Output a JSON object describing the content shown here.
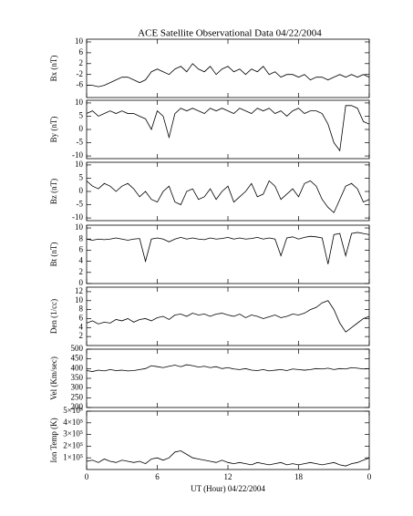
{
  "chart_data": [
    {
      "type": "line",
      "title": "ACE Satellite Observational Data   04/22/2004",
      "ylabel": "Bx (nT)",
      "ylim": [
        -10.5,
        11
      ],
      "yticks": [
        -6,
        -2,
        2,
        6,
        10
      ],
      "x": [
        0,
        0.5,
        1,
        1.5,
        2,
        2.5,
        3,
        3.5,
        4,
        4.5,
        5,
        5.5,
        6,
        6.5,
        7,
        7.5,
        8,
        8.5,
        9,
        9.5,
        10,
        10.5,
        11,
        11.5,
        12,
        12.5,
        13,
        13.5,
        14,
        14.5,
        15,
        15.5,
        16,
        16.5,
        17,
        17.5,
        18,
        18.5,
        19,
        19.5,
        20,
        20.5,
        21,
        21.5,
        22,
        22.5,
        23,
        23.5,
        24
      ],
      "values": [
        -6,
        -6,
        -6.5,
        -6,
        -5,
        -4,
        -3,
        -3,
        -4,
        -5,
        -4,
        -1,
        0,
        -1,
        -2,
        0,
        1,
        -1,
        2,
        0,
        -1,
        1,
        -2,
        0,
        1,
        -1,
        0,
        -2,
        0,
        -1,
        1,
        -2,
        -1,
        -3,
        -2,
        -2,
        -3,
        -2,
        -4,
        -3,
        -3,
        -4,
        -3,
        -2,
        -3,
        -2,
        -3,
        -2,
        -3
      ]
    },
    {
      "type": "line",
      "ylabel": "By (nT)",
      "ylim": [
        -11,
        11
      ],
      "yticks": [
        -10,
        -5,
        0,
        5,
        10
      ],
      "x": [
        0,
        0.5,
        1,
        1.5,
        2,
        2.5,
        3,
        3.5,
        4,
        4.5,
        5,
        5.5,
        6,
        6.5,
        7,
        7.5,
        8,
        8.5,
        9,
        9.5,
        10,
        10.5,
        11,
        11.5,
        12,
        12.5,
        13,
        13.5,
        14,
        14.5,
        15,
        15.5,
        16,
        16.5,
        17,
        17.5,
        18,
        18.5,
        19,
        19.5,
        20,
        20.5,
        21,
        21.5,
        22,
        22.5,
        23,
        23.5,
        24
      ],
      "values": [
        6,
        7,
        5,
        6,
        7,
        6,
        7,
        6,
        6,
        5,
        4,
        0,
        7,
        5,
        -3,
        6,
        8,
        7,
        8,
        7,
        6,
        8,
        7,
        8,
        7,
        6,
        8,
        7,
        6,
        8,
        7,
        8,
        6,
        7,
        5,
        7,
        8,
        6,
        7,
        7,
        6,
        2,
        -5,
        -8,
        9,
        9,
        8,
        3,
        2
      ]
    },
    {
      "type": "line",
      "ylabel": "Bz (nT)",
      "ylim": [
        -11,
        11
      ],
      "yticks": [
        -10,
        -5,
        0,
        5,
        10
      ],
      "x": [
        0,
        0.5,
        1,
        1.5,
        2,
        2.5,
        3,
        3.5,
        4,
        4.5,
        5,
        5.5,
        6,
        6.5,
        7,
        7.5,
        8,
        8.5,
        9,
        9.5,
        10,
        10.5,
        11,
        11.5,
        12,
        12.5,
        13,
        13.5,
        14,
        14.5,
        15,
        15.5,
        16,
        16.5,
        17,
        17.5,
        18,
        18.5,
        19,
        19.5,
        20,
        20.5,
        21,
        21.5,
        22,
        22.5,
        23,
        23.5,
        24
      ],
      "values": [
        4,
        2,
        1,
        3,
        2,
        0,
        2,
        3,
        1,
        -2,
        0,
        -3,
        -4,
        0,
        2,
        -4,
        -5,
        0,
        1,
        -3,
        -2,
        1,
        -3,
        0,
        2,
        -4,
        -2,
        0,
        3,
        -2,
        -1,
        4,
        2,
        -3,
        -1,
        1,
        -2,
        3,
        4,
        2,
        -3,
        -6,
        -8,
        -3,
        2,
        3,
        1,
        -4,
        -3
      ]
    },
    {
      "type": "line",
      "ylabel": "Bt (nT)",
      "ylim": [
        0,
        10.5
      ],
      "yticks": [
        0,
        2,
        4,
        6,
        8,
        10
      ],
      "x": [
        0,
        0.5,
        1,
        1.5,
        2,
        2.5,
        3,
        3.5,
        4,
        4.5,
        5,
        5.5,
        6,
        6.5,
        7,
        7.5,
        8,
        8.5,
        9,
        9.5,
        10,
        10.5,
        11,
        11.5,
        12,
        12.5,
        13,
        13.5,
        14,
        14.5,
        15,
        15.5,
        16,
        16.5,
        17,
        17.5,
        18,
        18.5,
        19,
        19.5,
        20,
        20.5,
        21,
        21.5,
        22,
        22.5,
        23,
        23.5,
        24
      ],
      "values": [
        8,
        7.8,
        8,
        7.9,
        8,
        8.2,
        8,
        7.8,
        8,
        8.1,
        4,
        8,
        8.2,
        8,
        7.5,
        8,
        8.3,
        8,
        8.2,
        8,
        7.9,
        8.2,
        8,
        8.1,
        8.3,
        8,
        8.2,
        8,
        8.1,
        8.3,
        8,
        8.2,
        8,
        5,
        8.2,
        8.4,
        8,
        8.3,
        8.5,
        8.4,
        8.2,
        3.5,
        8.8,
        9,
        5,
        9,
        9.2,
        9,
        8.8
      ]
    },
    {
      "type": "line",
      "ylabel": "Den (1/cc)",
      "ylim": [
        0,
        13
      ],
      "yticks": [
        2,
        4,
        6,
        8,
        10,
        12
      ],
      "x": [
        0,
        0.5,
        1,
        1.5,
        2,
        2.5,
        3,
        3.5,
        4,
        4.5,
        5,
        5.5,
        6,
        6.5,
        7,
        7.5,
        8,
        8.5,
        9,
        9.5,
        10,
        10.5,
        11,
        11.5,
        12,
        12.5,
        13,
        13.5,
        14,
        14.5,
        15,
        15.5,
        16,
        16.5,
        17,
        17.5,
        18,
        18.5,
        19,
        19.5,
        20,
        20.5,
        21,
        21.5,
        22,
        22.5,
        23,
        23.5,
        24
      ],
      "values": [
        5,
        5.5,
        4.8,
        5.2,
        5,
        5.8,
        5.5,
        6,
        5.2,
        5.8,
        6,
        5.5,
        6.2,
        6.5,
        5.8,
        6.8,
        7,
        6.5,
        7.2,
        6.8,
        7,
        6.5,
        7,
        7.2,
        6.8,
        6.5,
        7,
        6.2,
        6.8,
        6.5,
        6,
        6.4,
        6.8,
        6.2,
        6.5,
        7,
        6.8,
        7.2,
        8,
        8.5,
        9.5,
        10,
        8,
        5,
        3,
        4,
        5,
        6,
        6.5
      ]
    },
    {
      "type": "line",
      "ylabel": "Vel (Km/sec)",
      "ylim": [
        200,
        500
      ],
      "yticks": [
        200,
        250,
        300,
        350,
        400,
        450,
        500
      ],
      "x": [
        0,
        0.5,
        1,
        1.5,
        2,
        2.5,
        3,
        3.5,
        4,
        4.5,
        5,
        5.5,
        6,
        6.5,
        7,
        7.5,
        8,
        8.5,
        9,
        9.5,
        10,
        10.5,
        11,
        11.5,
        12,
        12.5,
        13,
        13.5,
        14,
        14.5,
        15,
        15.5,
        16,
        16.5,
        17,
        17.5,
        18,
        18.5,
        19,
        19.5,
        20,
        20.5,
        21,
        21.5,
        22,
        22.5,
        23,
        23.5,
        24
      ],
      "values": [
        390,
        385,
        392,
        388,
        395,
        390,
        392,
        388,
        390,
        395,
        400,
        415,
        410,
        405,
        412,
        418,
        410,
        420,
        415,
        408,
        412,
        405,
        410,
        400,
        405,
        398,
        395,
        400,
        392,
        390,
        395,
        388,
        392,
        395,
        390,
        398,
        395,
        392,
        395,
        400,
        398,
        402,
        395,
        400,
        398,
        405,
        402,
        398,
        400
      ]
    },
    {
      "type": "line",
      "ylabel": "Ion Temp (K)",
      "xlabel": "UT (Hour)  04/22/2004",
      "ylim": [
        0,
        500000
      ],
      "yticks": [
        {
          "value": 100000,
          "label": "1×10⁵"
        },
        {
          "value": 200000,
          "label": "2×10⁵"
        },
        {
          "value": 300000,
          "label": "3×10⁵"
        },
        {
          "value": 400000,
          "label": "4×10⁵"
        },
        {
          "value": 500000,
          "label": "5×10⁵"
        }
      ],
      "xlim": [
        0,
        24
      ],
      "xticks": [
        0,
        6,
        12,
        18,
        {
          "value": 24,
          "label": "0"
        }
      ],
      "x": [
        0,
        0.5,
        1,
        1.5,
        2,
        2.5,
        3,
        3.5,
        4,
        4.5,
        5,
        5.5,
        6,
        6.5,
        7,
        7.5,
        8,
        8.5,
        9,
        9.5,
        10,
        10.5,
        11,
        11.5,
        12,
        12.5,
        13,
        13.5,
        14,
        14.5,
        15,
        15.5,
        16,
        16.5,
        17,
        17.5,
        18,
        18.5,
        19,
        19.5,
        20,
        20.5,
        21,
        21.5,
        22,
        22.5,
        23,
        23.5,
        24
      ],
      "values": [
        70000,
        80000,
        60000,
        90000,
        70000,
        60000,
        80000,
        70000,
        60000,
        70000,
        50000,
        90000,
        100000,
        80000,
        100000,
        150000,
        160000,
        130000,
        100000,
        90000,
        80000,
        70000,
        60000,
        80000,
        60000,
        50000,
        60000,
        50000,
        40000,
        60000,
        50000,
        40000,
        50000,
        60000,
        40000,
        50000,
        40000,
        50000,
        60000,
        50000,
        40000,
        50000,
        60000,
        40000,
        30000,
        50000,
        60000,
        80000,
        100000
      ]
    }
  ]
}
